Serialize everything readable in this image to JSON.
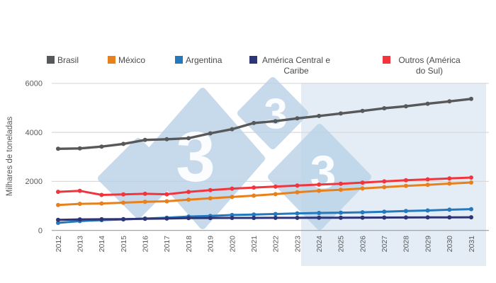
{
  "chart_data": {
    "type": "line",
    "title": "",
    "ylabel": "Milhares de toneladas",
    "xlabel": "",
    "ylim": [
      0,
      6000
    ],
    "yticks": [
      0,
      2000,
      4000,
      6000
    ],
    "grid": true,
    "legend_position": "top",
    "x": [
      2012,
      2013,
      2014,
      2015,
      2016,
      2017,
      2018,
      2019,
      2020,
      2021,
      2022,
      2023,
      2024,
      2025,
      2026,
      2027,
      2028,
      2029,
      2030,
      2031
    ],
    "series": [
      {
        "name": "Brasil",
        "color": "#57585a",
        "values": [
          3330,
          3345,
          3420,
          3530,
          3690,
          3720,
          3760,
          3960,
          4130,
          4380,
          4460,
          4570,
          4670,
          4770,
          4875,
          4985,
          5065,
          5170,
          5265,
          5365
        ]
      },
      {
        "name": "México",
        "color": "#e8811c",
        "values": [
          1040,
          1085,
          1100,
          1130,
          1170,
          1190,
          1255,
          1310,
          1365,
          1420,
          1480,
          1555,
          1620,
          1660,
          1710,
          1765,
          1815,
          1860,
          1910,
          1955
        ]
      },
      {
        "name": "Argentina",
        "color": "#2478bc",
        "values": [
          310,
          380,
          420,
          450,
          485,
          520,
          565,
          590,
          628,
          650,
          670,
          695,
          712,
          725,
          740,
          762,
          790,
          815,
          845,
          870
        ]
      },
      {
        "name": "América Central e Caribe",
        "color": "#2e3577",
        "values": [
          430,
          450,
          455,
          462,
          472,
          485,
          505,
          508,
          510,
          512,
          513,
          515,
          518,
          520,
          522,
          524,
          527,
          530,
          533,
          537
        ]
      },
      {
        "name": "Outros (América do Sul)",
        "color": "#f2353c",
        "values": [
          1575,
          1615,
          1450,
          1470,
          1495,
          1475,
          1570,
          1645,
          1705,
          1750,
          1790,
          1830,
          1870,
          1905,
          1950,
          2000,
          2045,
          2085,
          2120,
          2155
        ]
      }
    ],
    "forecast_band": {
      "start_year": 2023,
      "end_year": 2031,
      "color": "#e4edf6"
    },
    "watermark": {
      "digit": "3",
      "diamond_color": "#b9d2e8",
      "digit_color": "#ffffff"
    }
  }
}
